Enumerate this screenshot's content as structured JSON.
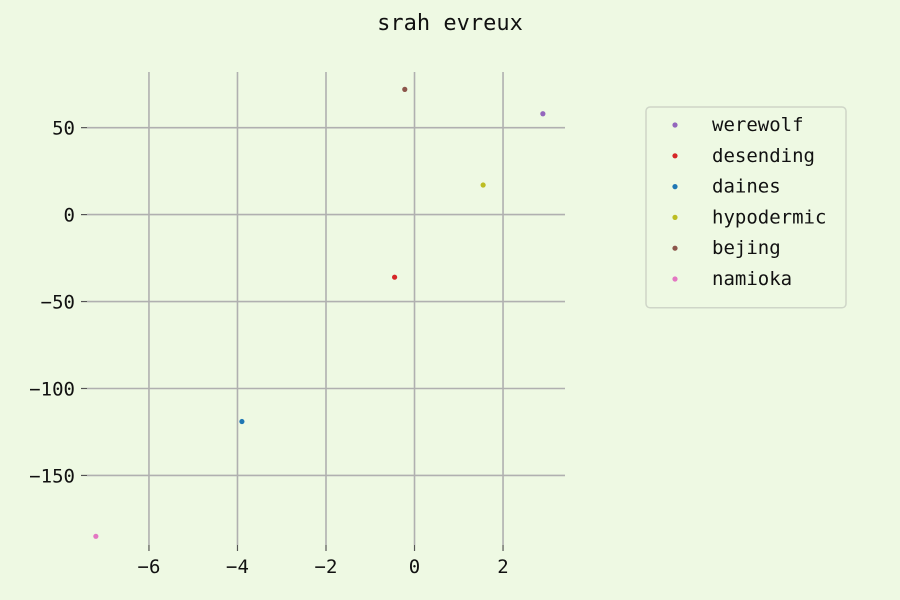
{
  "chart_data": {
    "type": "scatter",
    "title": "srah evreux",
    "xlabel": "",
    "ylabel": "",
    "xlim": [
      -7.4,
      3.4
    ],
    "ylim": [
      -190,
      82
    ],
    "xticks": [
      -6,
      -4,
      -2,
      0,
      2
    ],
    "xtick_labels": [
      "−6",
      "−4",
      "−2",
      "0",
      "2"
    ],
    "yticks": [
      50,
      0,
      -50,
      -100,
      -150
    ],
    "ytick_labels": [
      "50",
      "0",
      "−50",
      "−100",
      "−150"
    ],
    "grid": true,
    "legend_position": "top-right",
    "series": [
      {
        "name": "werewolf",
        "color": "#9467bd",
        "x": [
          2.9
        ],
        "y": [
          58
        ]
      },
      {
        "name": "desending",
        "color": "#d62728",
        "x": [
          -0.45
        ],
        "y": [
          -36
        ]
      },
      {
        "name": "daines",
        "color": "#1f77b4",
        "x": [
          -3.9
        ],
        "y": [
          -119
        ]
      },
      {
        "name": "hypodermic",
        "color": "#bcbd22",
        "x": [
          1.55
        ],
        "y": [
          17
        ]
      },
      {
        "name": "bejing",
        "color": "#8c564b",
        "x": [
          -0.22
        ],
        "y": [
          72
        ]
      },
      {
        "name": "namioka",
        "color": "#e377c2",
        "x": [
          -7.2
        ],
        "y": [
          -185
        ]
      }
    ]
  }
}
